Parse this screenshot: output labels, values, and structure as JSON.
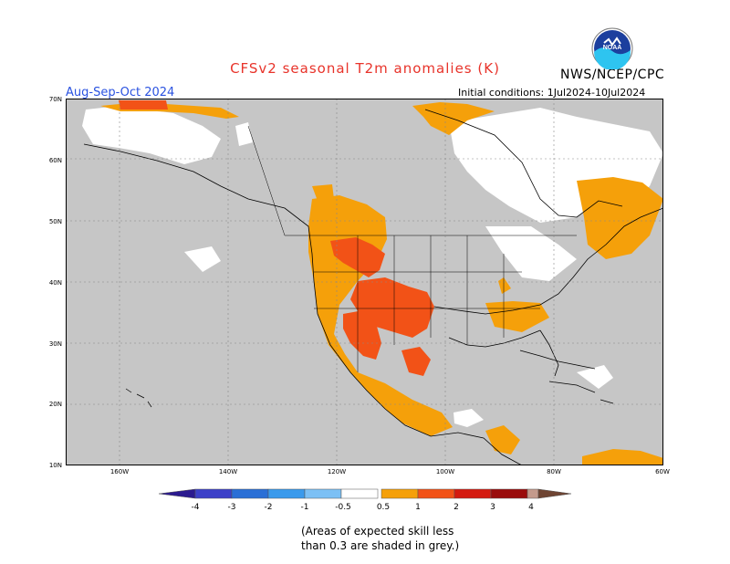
{
  "title": "CFSv2 seasonal T2m anomalies (K)",
  "agency": "NWS/NCEP/CPC",
  "season": "Aug-Sep-Oct 2024",
  "initial_conditions": "Initial conditions: 1Jul2024-10Jul2024",
  "logo_icon": "noaa-logo-icon",
  "lat_labels": [
    "70N",
    "60N",
    "50N",
    "40N",
    "30N",
    "20N",
    "10N"
  ],
  "lon_labels": [
    "160W",
    "140W",
    "120W",
    "100W",
    "80W",
    "60W"
  ],
  "colorbar": {
    "labels": [
      "-4",
      "-3",
      "-2",
      "-1",
      "-0.5",
      "0.5",
      "1",
      "2",
      "3",
      "4"
    ],
    "colors": {
      "lt_m4": "#2b1a8f",
      "m4_m3": "#3c40c8",
      "m3_m2": "#2a6fd6",
      "m2_m1": "#3a9aec",
      "m1_m05": "#7cc0f5",
      "neutral": "#ffffff",
      "p05_p1": "#f5a00a",
      "p1_p2": "#f25217",
      "p2_p3": "#d41a10",
      "p3_p4": "#9a0c0c",
      "p4_p5": "#c49a8c",
      "gt_p5": "#6e4432"
    }
  },
  "map_colors": {
    "low_skill_grey": "#c6c6c6",
    "ocean": "#c6c6c6",
    "coast": "#000000"
  },
  "note_lines": [
    "(Areas of expected skill less",
    "than 0.3 are shaded in grey.)"
  ]
}
